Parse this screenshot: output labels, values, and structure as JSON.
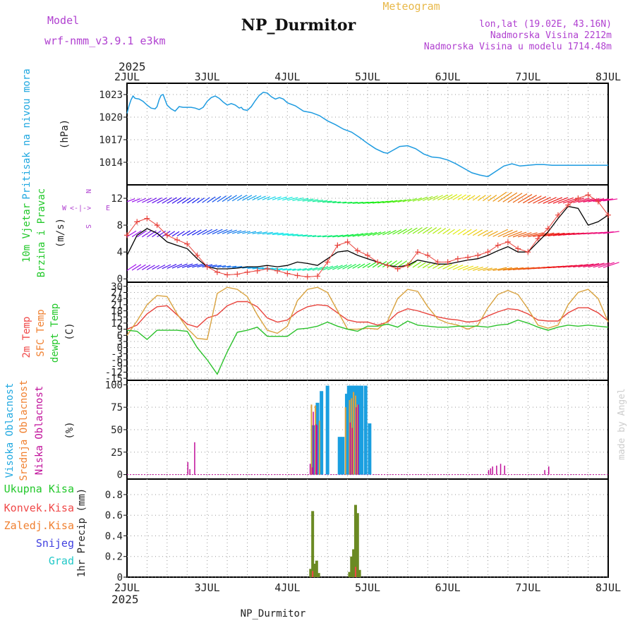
{
  "header": {
    "model_label": "Model",
    "model_name": "wrf-nmm_v3.9.1 e3km",
    "station": "NP_Durmitor",
    "meteogram": "Meteogram",
    "lonlat": "lon,lat (19.02E, 43.16N)",
    "elevation": "Nadmorska Visina 2212m",
    "model_elevation": "Nadmorska Visina u modelu 1714.48m",
    "footer_station": "NP_Durmitor",
    "watermark": "made by Angel"
  },
  "colors": {
    "pressure": "#1e9be0",
    "temp2m": "#e8433c",
    "sfc": "#d9a23e",
    "dew": "#2cc22c",
    "high_cloud": "#1a9fe0",
    "mid_cloud": "#d9a23e",
    "low_cloud": "#c0109a",
    "precip_total": "#6b8a23",
    "purple": "#b040d0",
    "cyan_label": "#20a8e0",
    "green_label": "#22c82a",
    "red_label": "#f04848",
    "orange_label": "#f08030",
    "blue_label": "#4040e0",
    "teal_label": "#22c8c8"
  },
  "chart_data": [
    {
      "type": "line",
      "panel": "pressure",
      "ylabel_lines": [
        "Pritisak na nivou mora",
        "(hPa)"
      ],
      "ylim": [
        1011,
        1024.5
      ],
      "yticks": [
        1014,
        1017,
        1020,
        1023
      ],
      "x_ticks": [
        "2JUL",
        "3JUL",
        "4JUL",
        "5JUL",
        "6JUL",
        "7JUL",
        "8JUL"
      ],
      "year": "2025",
      "series": [
        {
          "name": "Pritisak",
          "x": [
            0,
            0.05,
            0.1,
            0.15,
            0.2,
            0.3,
            0.4,
            0.5,
            0.6,
            0.7,
            0.75,
            0.8,
            0.85,
            0.9,
            0.95,
            1.0,
            1.1,
            1.2,
            1.3,
            1.4,
            1.5,
            1.6,
            1.7,
            1.8,
            1.9,
            2.0,
            2.1,
            2.2,
            2.3,
            2.4,
            2.5,
            2.6,
            2.7,
            2.8,
            2.85,
            2.9,
            3.0,
            3.1,
            3.2,
            3.3,
            3.4,
            3.5,
            3.6,
            3.7,
            3.8,
            3.9,
            4.0,
            4.2,
            4.4,
            4.6,
            4.8,
            5.0,
            5.2,
            5.4,
            5.6,
            5.8,
            6.0,
            6.2,
            6.4,
            6.5,
            6.6,
            6.8,
            7.0,
            7.2,
            7.4,
            7.6,
            7.8,
            8.0,
            8.2,
            8.4,
            8.6,
            8.8,
            9.0,
            9.2,
            9.4,
            9.6,
            9.8,
            10.0,
            10.2,
            10.4,
            10.6,
            10.8,
            11.0,
            11.2,
            11.4,
            11.6,
            11.8,
            12.0
          ],
          "values": [
            1020.5,
            1021.5,
            1022.3,
            1022.8,
            1022.5,
            1022.4,
            1022.1,
            1021.6,
            1021.2,
            1021.1,
            1021.4,
            1022.3,
            1022.9,
            1023.0,
            1022.3,
            1021.6,
            1021.1,
            1020.8,
            1021.4,
            1021.3,
            1021.3,
            1021.3,
            1021.2,
            1021.0,
            1021.3,
            1022.1,
            1022.6,
            1022.8,
            1022.5,
            1022.0,
            1021.6,
            1021.8,
            1021.6,
            1021.2,
            1021.3,
            1021.0,
            1020.9,
            1021.4,
            1022.2,
            1022.9,
            1023.3,
            1023.2,
            1022.7,
            1022.4,
            1022.6,
            1022.4,
            1021.9,
            1021.5,
            1020.8,
            1020.6,
            1020.2,
            1019.5,
            1019.0,
            1018.4,
            1018.0,
            1017.3,
            1016.5,
            1015.8,
            1015.3,
            1015.2,
            1015.5,
            1016.1,
            1016.2,
            1015.8,
            1015.1,
            1014.7,
            1014.6,
            1014.3,
            1013.8,
            1013.2,
            1012.6,
            1012.3,
            1012.1,
            1012.8,
            1013.5,
            1013.8,
            1013.5,
            1013.6,
            1013.7,
            1013.7,
            1013.6,
            1013.6,
            1013.6,
            1013.6,
            1013.6,
            1013.6,
            1013.6,
            1013.6
          ]
        }
      ]
    },
    {
      "type": "line",
      "panel": "wind",
      "ylabel_lines": [
        "10m Vjetar",
        "Brzina i Pravac",
        "(m/s)"
      ],
      "compass": {
        "n": "N",
        "s": "S",
        "w": "W",
        "e": "E",
        "arrows": "<-|->"
      },
      "ylim": [
        -0.5,
        14
      ],
      "yticks": [
        0,
        4,
        8,
        12
      ],
      "series": [
        {
          "name": "Brzina (udari)",
          "marker": "+",
          "x": [
            0,
            0.25,
            0.5,
            0.75,
            1.0,
            1.25,
            1.5,
            1.75,
            2.0,
            2.25,
            2.5,
            2.75,
            3.0,
            3.25,
            3.5,
            3.75,
            4.0,
            4.25,
            4.5,
            4.75,
            5.0,
            5.25,
            5.5,
            5.75,
            6.0,
            6.25,
            6.5,
            6.75,
            7.0,
            7.25,
            7.5,
            7.75,
            8.0,
            8.25,
            8.5,
            8.75,
            9.0,
            9.25,
            9.5,
            9.75,
            10.0,
            10.25,
            10.5,
            10.75,
            11.0,
            11.25,
            11.5,
            11.75,
            12.0
          ],
          "values": [
            6.5,
            8.5,
            9.0,
            8.0,
            6.5,
            5.8,
            5.2,
            3.5,
            1.8,
            1.0,
            0.6,
            0.7,
            1.0,
            1.2,
            1.5,
            1.2,
            0.8,
            0.5,
            0.3,
            0.4,
            2.5,
            5.0,
            5.5,
            4.2,
            3.5,
            2.5,
            2.0,
            1.5,
            2.0,
            4.0,
            3.5,
            2.5,
            2.5,
            3.0,
            3.2,
            3.5,
            4.0,
            5.0,
            5.5,
            4.5,
            4.0,
            6.0,
            7.5,
            9.5,
            11.0,
            12.0,
            12.5,
            11.5,
            9.5
          ]
        },
        {
          "name": "Brzina",
          "marker": "line",
          "x": [
            0,
            0.25,
            0.5,
            0.75,
            1.0,
            1.25,
            1.5,
            1.75,
            2.0,
            2.25,
            2.5,
            2.75,
            3.0,
            3.25,
            3.5,
            3.75,
            4.0,
            4.25,
            4.5,
            4.75,
            5.0,
            5.25,
            5.5,
            5.75,
            6.0,
            6.25,
            6.5,
            6.75,
            7.0,
            7.25,
            7.5,
            7.75,
            8.0,
            8.25,
            8.5,
            8.75,
            9.0,
            9.25,
            9.5,
            9.75,
            10.0,
            10.25,
            10.5,
            10.75,
            11.0,
            11.25,
            11.5,
            11.75,
            12.0
          ],
          "values": [
            3.5,
            6.5,
            7.5,
            6.8,
            5.5,
            5.0,
            4.5,
            3.0,
            1.8,
            1.5,
            1.5,
            1.6,
            1.8,
            1.8,
            2.0,
            1.8,
            2.0,
            2.5,
            2.3,
            2.0,
            3.0,
            4.0,
            4.2,
            3.5,
            3.0,
            2.5,
            2.0,
            1.8,
            2.0,
            2.8,
            2.5,
            2.2,
            2.2,
            2.5,
            2.8,
            3.0,
            3.5,
            4.2,
            4.8,
            4.0,
            4.0,
            5.5,
            7.0,
            9.0,
            10.8,
            10.5,
            8.0,
            8.5,
            9.5
          ]
        }
      ],
      "wind_rows": [
        11.5,
        6.5,
        1.5
      ]
    },
    {
      "type": "line",
      "panel": "temperature",
      "ylabel_lines": [
        "2m Temp",
        "SFC Temp",
        "dewpt Temp",
        "(C)"
      ],
      "ylim": [
        -16,
        32
      ],
      "yticks": [
        -15,
        -12,
        -9,
        -6,
        -3,
        0,
        3,
        6,
        9,
        12,
        15,
        18,
        21,
        24,
        27,
        30
      ],
      "series": [
        {
          "name": "2m Temp",
          "x": [
            0,
            0.25,
            0.5,
            0.75,
            1.0,
            1.25,
            1.5,
            1.75,
            2.0,
            2.25,
            2.5,
            2.75,
            3.0,
            3.25,
            3.5,
            3.75,
            4.0,
            4.25,
            4.5,
            4.75,
            5.0,
            5.25,
            5.5,
            5.75,
            6.0,
            6.25,
            6.5,
            6.75,
            7.0,
            7.25,
            7.5,
            7.75,
            8.0,
            8.25,
            8.5,
            8.75,
            9.0,
            9.25,
            9.5,
            9.75,
            10.0,
            10.25,
            10.5,
            10.75,
            11.0,
            11.25,
            11.5,
            11.75,
            12.0
          ],
          "values": [
            9.0,
            11.0,
            16.5,
            20.0,
            20.5,
            16.0,
            11.5,
            10.0,
            14.5,
            16.0,
            20.5,
            22.5,
            22.5,
            20.0,
            14.5,
            12.5,
            13.5,
            17.5,
            20.0,
            21.0,
            20.5,
            17.0,
            13.5,
            12.5,
            12.5,
            11.0,
            12.5,
            17.0,
            19.0,
            18.0,
            16.5,
            15.0,
            14.0,
            13.5,
            12.5,
            13.0,
            15.5,
            17.5,
            19.0,
            18.5,
            16.5,
            13.5,
            13.0,
            13.0,
            17.0,
            19.5,
            19.5,
            17.0,
            13.0
          ]
        },
        {
          "name": "SFC Temp",
          "x": [
            0,
            0.25,
            0.5,
            0.75,
            1.0,
            1.25,
            1.5,
            1.75,
            2.0,
            2.25,
            2.5,
            2.75,
            3.0,
            3.25,
            3.5,
            3.75,
            4.0,
            4.25,
            4.5,
            4.75,
            5.0,
            5.25,
            5.5,
            5.75,
            6.0,
            6.25,
            6.5,
            6.75,
            7.0,
            7.25,
            7.5,
            7.75,
            8.0,
            8.25,
            8.5,
            8.75,
            9.0,
            9.25,
            9.5,
            9.75,
            10.0,
            10.25,
            10.5,
            10.75,
            11.0,
            11.25,
            11.5,
            11.75,
            12.0
          ],
          "values": [
            6.0,
            13.0,
            21.0,
            25.5,
            25.0,
            16.5,
            9.5,
            4.5,
            4.0,
            26.5,
            29.5,
            28.5,
            25.0,
            16.0,
            8.5,
            7.0,
            10.5,
            23.0,
            28.5,
            29.5,
            27.0,
            18.0,
            9.0,
            9.0,
            9.5,
            9.0,
            13.0,
            24.0,
            28.5,
            27.5,
            20.0,
            14.0,
            12.0,
            11.0,
            9.0,
            11.0,
            19.5,
            26.0,
            28.0,
            26.0,
            19.0,
            11.0,
            9.5,
            11.0,
            21.0,
            27.0,
            28.5,
            24.0,
            12.5
          ]
        },
        {
          "name": "dewpt Temp",
          "x": [
            0,
            0.25,
            0.5,
            0.75,
            1.0,
            1.25,
            1.5,
            1.75,
            2.0,
            2.25,
            2.5,
            2.75,
            3.0,
            3.25,
            3.5,
            3.75,
            4.0,
            4.25,
            4.5,
            4.75,
            5.0,
            5.25,
            5.5,
            5.75,
            6.0,
            6.25,
            6.5,
            6.75,
            7.0,
            7.25,
            7.5,
            7.75,
            8.0,
            8.25,
            8.5,
            8.75,
            9.0,
            9.25,
            9.5,
            9.75,
            10.0,
            10.25,
            10.5,
            10.75,
            11.0,
            11.25,
            11.5,
            11.75,
            12.0
          ],
          "values": [
            8.5,
            8.0,
            4.0,
            8.5,
            8.5,
            8.5,
            8.0,
            0.0,
            -6.0,
            -13.0,
            -2.0,
            7.5,
            8.5,
            10.0,
            5.5,
            5.5,
            5.5,
            9.0,
            9.5,
            10.5,
            12.5,
            10.5,
            9.0,
            8.0,
            10.5,
            10.5,
            11.5,
            10.0,
            13.0,
            11.0,
            10.5,
            10.0,
            10.0,
            10.5,
            10.5,
            10.5,
            10.0,
            11.0,
            11.5,
            13.5,
            12.0,
            10.0,
            8.5,
            10.0,
            11.0,
            10.5,
            11.0,
            10.5,
            10.0
          ]
        }
      ]
    },
    {
      "type": "bar",
      "panel": "cloud",
      "ylabel_lines": [
        "Visoka Oblacnost",
        "Srednja Oblacnost",
        "Niska Oblacnost",
        "(%)"
      ],
      "ylim": [
        -5,
        105
      ],
      "yticks": [
        0,
        25,
        50,
        75,
        100
      ],
      "series": [
        {
          "name": "Visoka Oblacnost",
          "x": [
            4.65,
            4.75,
            4.85,
            5.0,
            5.3,
            5.38,
            5.48,
            5.53,
            5.58,
            5.63,
            5.68,
            5.73,
            5.78,
            5.85,
            5.95,
            6.05
          ],
          "values": [
            55,
            80,
            93,
            99,
            42,
            42,
            90,
            99,
            99,
            99,
            99,
            99,
            99,
            99,
            99,
            57
          ]
        },
        {
          "name": "Srednja Oblacnost",
          "x": [
            4.6,
            4.7,
            4.8,
            5.45,
            5.55,
            5.6,
            5.65,
            5.7,
            5.75
          ],
          "values": [
            78,
            77,
            60,
            75,
            83,
            85,
            92,
            88,
            78
          ]
        },
        {
          "name": "Niska Oblacnost",
          "x": [
            1.5,
            1.55,
            1.67,
            4.55,
            4.6,
            4.63,
            4.7,
            4.72,
            5.55,
            5.6,
            5.7,
            5.75,
            9.0,
            9.05,
            9.1,
            9.2,
            9.3,
            9.4,
            10.4,
            10.5
          ],
          "values": [
            14,
            6,
            36,
            12,
            8,
            70,
            56,
            55,
            58,
            52,
            75,
            78,
            5,
            7,
            9,
            10,
            12,
            10,
            5,
            9
          ]
        }
      ]
    },
    {
      "type": "bar",
      "panel": "precip",
      "ylabel_lines": [
        "1hr Precip (mm)"
      ],
      "legend": [
        "Ukupna Kisa",
        "Konvek.Kisa",
        "Zaledj.Kisa",
        "Snijeg",
        "Grad"
      ],
      "ylim": [
        0,
        0.95
      ],
      "yticks": [
        0,
        0.2,
        0.4,
        0.6,
        0.8
      ],
      "series": [
        {
          "name": "Ukupna Kisa",
          "x": [
            4.58,
            4.63,
            4.68,
            4.73,
            4.78,
            5.55,
            5.6,
            5.65,
            5.7,
            5.75,
            5.8,
            5.85
          ],
          "values": [
            0.08,
            0.64,
            0.13,
            0.16,
            0.04,
            0.05,
            0.2,
            0.27,
            0.7,
            0.62,
            0.07,
            0.0
          ]
        },
        {
          "name": "Konvek.Kisa",
          "x": [
            4.63,
            5.7
          ],
          "values": [
            0.06,
            0.1
          ]
        }
      ]
    }
  ]
}
